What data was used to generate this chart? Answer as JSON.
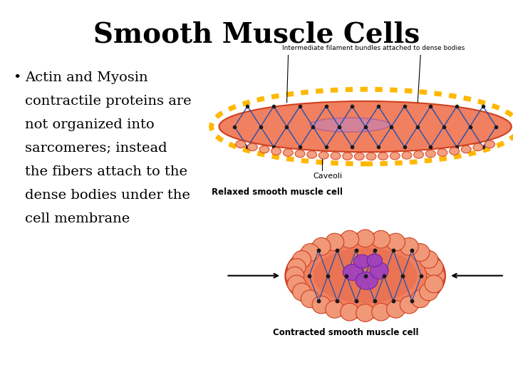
{
  "title": "Smooth Muscle Cells",
  "title_fontsize": 28,
  "title_fontfamily": "serif",
  "title_fontweight": "bold",
  "title_color": "#000000",
  "background_color": "#ffffff",
  "bullet_marker": "•",
  "bullet_text_lines": [
    "Actin and Myosin",
    "contractile proteins are",
    "not organized into",
    "sarcomeres; instead",
    "the fibers attach to the",
    "dense bodies under the",
    "cell membrane"
  ],
  "bullet_fontsize": 14,
  "bullet_fontfamily": "serif",
  "bullet_color": "#000000",
  "relaxed_label": "Relaxed smooth muscle cell",
  "contracted_label": "Contracted smooth muscle cell",
  "filament_label": "Intermediate filament bundles attached to dense bodies",
  "caveoli_label": "Caveoli",
  "orange_main": "#F08060",
  "orange_edge": "#D04020",
  "orange_light": "#F4A080",
  "yellow_border": "#FFB800",
  "blue_net": "#2050B0",
  "purple_myo": "#A040C0",
  "purple_myo_dark": "#7020A0",
  "pink_relaxed_myo": "#D080A0",
  "node_color": "#1a1a1a"
}
